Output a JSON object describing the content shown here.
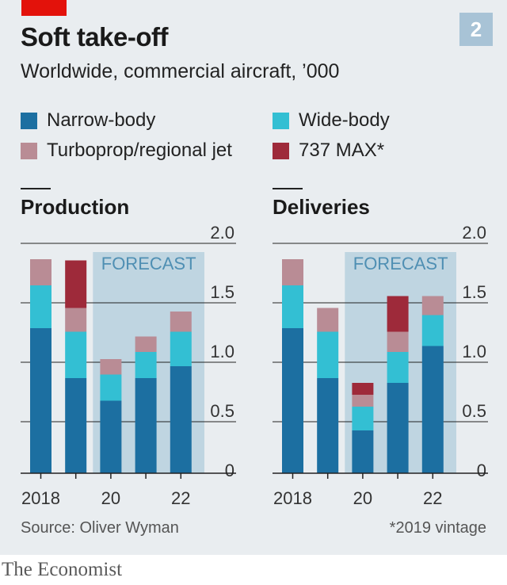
{
  "header": {
    "title": "Soft take-off",
    "subtitle": "Worldwide, commercial aircraft, ’000",
    "badge": "2"
  },
  "colors": {
    "narrow": "#1c6fa1",
    "wide": "#33bfd3",
    "turbo": "#b98c95",
    "max": "#9e2a3a",
    "forecast": "#bfd5e1",
    "red_tag": "#e3120b"
  },
  "legend": [
    {
      "key": "narrow",
      "label": "Narrow-body"
    },
    {
      "key": "wide",
      "label": "Wide-body"
    },
    {
      "key": "turbo",
      "label": "Turboprop/regional jet"
    },
    {
      "key": "max",
      "label": "737 MAX*"
    }
  ],
  "chart_data": [
    {
      "type": "bar",
      "stacked": true,
      "title": "Production",
      "years": [
        2018,
        2019,
        2020,
        2021,
        2022
      ],
      "x_tick_labels": [
        "2018",
        "",
        "20",
        "",
        "22"
      ],
      "forecast_from_index": 2,
      "forecast_label": "FORECAST",
      "ylim": [
        0,
        2.0
      ],
      "y_ticks": [
        "0",
        "0.5",
        "1.0",
        "1.5",
        "2.0"
      ],
      "series": [
        {
          "name": "Narrow-body",
          "key": "narrow",
          "values": [
            1.22,
            0.8,
            0.61,
            0.8,
            0.9
          ]
        },
        {
          "name": "Wide-body",
          "key": "wide",
          "values": [
            0.36,
            0.39,
            0.22,
            0.22,
            0.29
          ]
        },
        {
          "name": "Turboprop/regional jet",
          "key": "turbo",
          "values": [
            0.22,
            0.2,
            0.13,
            0.13,
            0.17
          ]
        },
        {
          "name": "737 MAX*",
          "key": "max",
          "values": [
            0.0,
            0.4,
            0.0,
            0.0,
            0.0
          ]
        }
      ]
    },
    {
      "type": "bar",
      "stacked": true,
      "title": "Deliveries",
      "years": [
        2018,
        2019,
        2020,
        2021,
        2022
      ],
      "x_tick_labels": [
        "2018",
        "",
        "20",
        "",
        "22"
      ],
      "forecast_from_index": 2,
      "forecast_label": "FORECAST",
      "ylim": [
        0,
        2.0
      ],
      "y_ticks": [
        "0",
        "0.5",
        "1.0",
        "1.5",
        "2.0"
      ],
      "series": [
        {
          "name": "Narrow-body",
          "key": "narrow",
          "values": [
            1.22,
            0.8,
            0.36,
            0.76,
            1.07
          ]
        },
        {
          "name": "Wide-body",
          "key": "wide",
          "values": [
            0.36,
            0.39,
            0.2,
            0.26,
            0.26
          ]
        },
        {
          "name": "Turboprop/regional jet",
          "key": "turbo",
          "values": [
            0.22,
            0.2,
            0.1,
            0.17,
            0.16
          ]
        },
        {
          "name": "737 MAX*",
          "key": "max",
          "values": [
            0.0,
            0.0,
            0.1,
            0.3,
            0.0
          ]
        }
      ]
    }
  ],
  "footer": {
    "source": "Source: Oliver Wyman",
    "note": "*2019 vintage",
    "wordmark": "The Economist"
  }
}
